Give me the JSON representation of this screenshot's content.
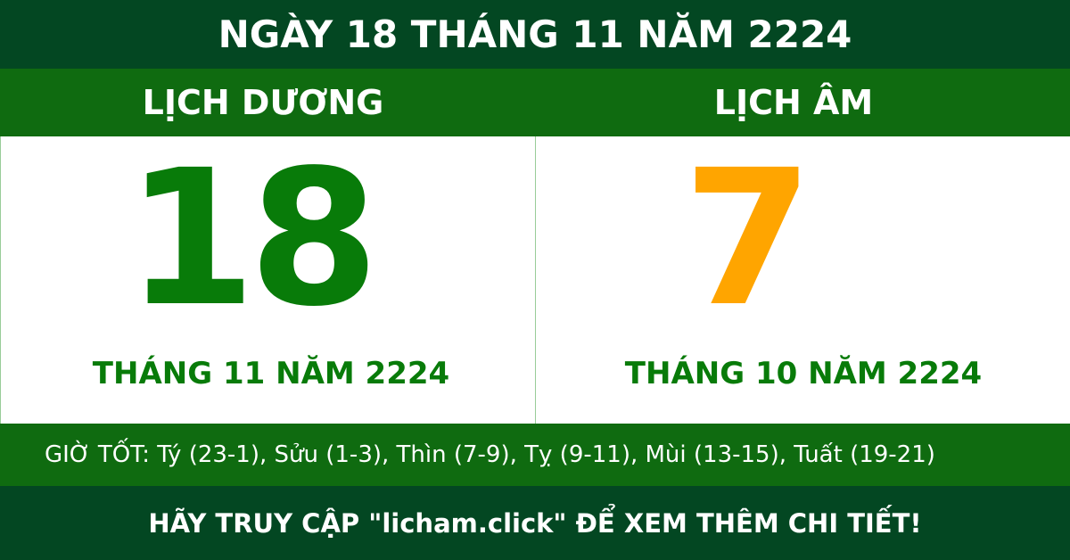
{
  "title": "NGÀY 18 THÁNG 11 NĂM 2224",
  "solar": {
    "heading": "LỊCH DƯƠNG",
    "day": "18",
    "month_year": "THÁNG 11 NĂM 2224"
  },
  "lunar": {
    "heading": "LỊCH ÂM",
    "day": "7",
    "month_year": "THÁNG 10 NĂM 2224"
  },
  "good_hours": "GIỜ TỐT: Tý (23-1), Sửu (1-3), Thìn (7-9), Tỵ (9-11), Mùi (13-15), Tuất (19-21)",
  "footer": "HÃY TRUY CẬP \"licham.click\" ĐỂ XEM THÊM CHI TIẾT!",
  "colors": {
    "dark_green": "#034722",
    "green": "#0f6b10",
    "solar_day": "#087b09",
    "lunar_day": "#ffa500"
  }
}
